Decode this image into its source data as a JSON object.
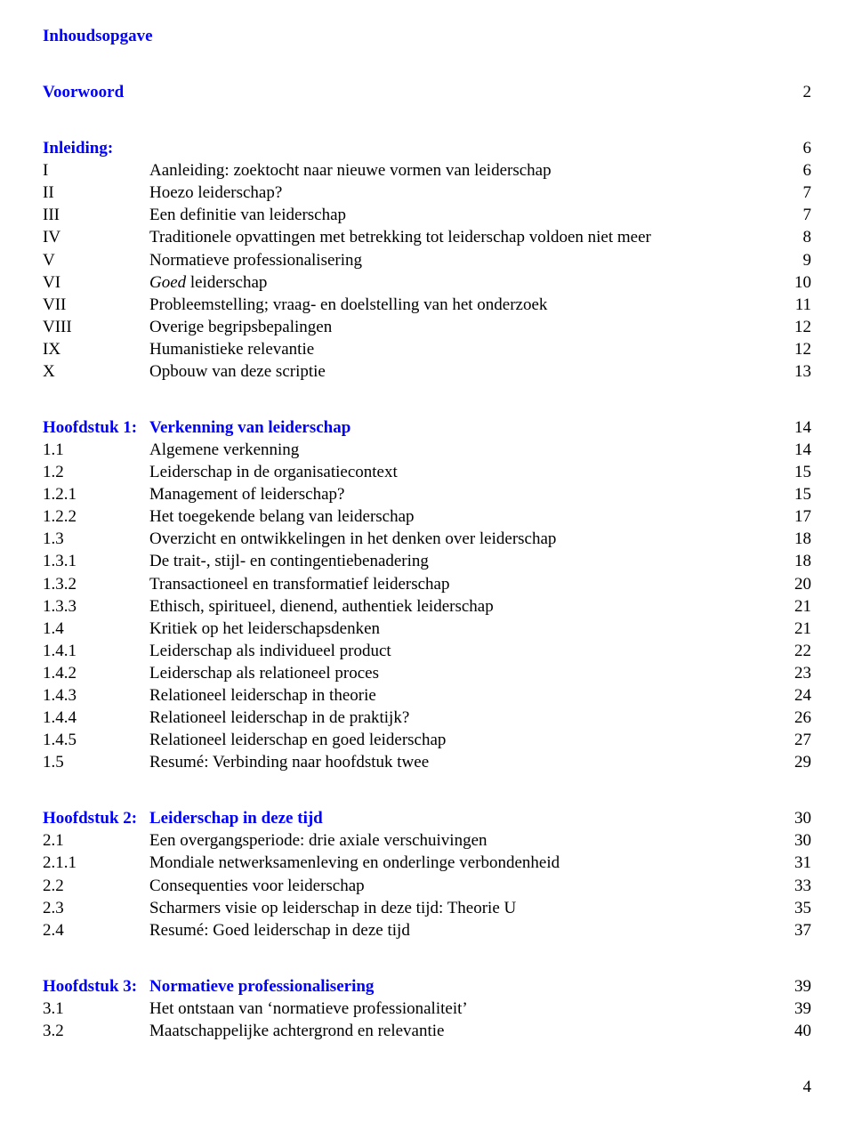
{
  "colors": {
    "link_blue": "#0000ff",
    "text_black": "#000000",
    "background": "#ffffff"
  },
  "typography": {
    "font_family": "Times New Roman",
    "base_fontsize_pt": 14
  },
  "title": "Inhoudsopgave",
  "voorwoord": {
    "label": "Voorwoord",
    "page": "2"
  },
  "inleiding": {
    "heading": {
      "label": "Inleiding:",
      "page": "6"
    },
    "items": [
      {
        "num": "I",
        "label": "Aanleiding: zoektocht naar nieuwe vormen van leiderschap",
        "page": "6"
      },
      {
        "num": "II",
        "label": "Hoezo leiderschap?",
        "page": "7"
      },
      {
        "num": "III",
        "label": "Een definitie van leiderschap",
        "page": "7"
      },
      {
        "num": "IV",
        "label": "Traditionele opvattingen met betrekking tot leiderschap voldoen niet meer",
        "page": "8"
      },
      {
        "num": "V",
        "label": "Normatieve professionalisering",
        "page": "9"
      },
      {
        "num": "VI",
        "label": "Goed leiderschap",
        "page": "10",
        "italic": true
      },
      {
        "num": "VII",
        "label": "Probleemstelling; vraag- en doelstelling van het onderzoek",
        "page": "11"
      },
      {
        "num": "VIII",
        "label": "Overige begripsbepalingen",
        "page": "12"
      },
      {
        "num": "IX",
        "label": "Humanistieke relevantie",
        "page": "12"
      },
      {
        "num": "X",
        "label": "Opbouw van deze scriptie",
        "page": "13"
      }
    ]
  },
  "h1": {
    "heading": {
      "num": "Hoofdstuk 1:",
      "label": "Verkenning van leiderschap",
      "page": "14"
    },
    "items": [
      {
        "num": "1.1",
        "label": "Algemene verkenning",
        "page": "14"
      },
      {
        "num": "1.2",
        "label": "Leiderschap in de organisatiecontext",
        "page": "15"
      },
      {
        "num": "1.2.1",
        "label": "Management of leiderschap?",
        "page": "15"
      },
      {
        "num": "1.2.2",
        "label": "Het toegekende belang van leiderschap",
        "page": "17"
      },
      {
        "num": "1.3",
        "label": "Overzicht en ontwikkelingen in het denken over leiderschap",
        "page": "18"
      },
      {
        "num": "1.3.1",
        "label": "De trait-, stijl- en contingentiebenadering",
        "page": "18"
      },
      {
        "num": "1.3.2",
        "label": "Transactioneel en transformatief leiderschap",
        "page": "20"
      },
      {
        "num": "1.3.3",
        "label": "Ethisch, spiritueel, dienend, authentiek leiderschap",
        "page": "21"
      },
      {
        "num": "1.4",
        "label": "Kritiek op het leiderschapsdenken",
        "page": "21"
      },
      {
        "num": "1.4.1",
        "label": "Leiderschap als individueel product",
        "page": "22"
      },
      {
        "num": "1.4.2",
        "label": "Leiderschap als relationeel proces",
        "page": "23"
      },
      {
        "num": "1.4.3",
        "label": "Relationeel leiderschap in theorie",
        "page": "24"
      },
      {
        "num": "1.4.4",
        "label": "Relationeel leiderschap in de praktijk?",
        "page": "26"
      },
      {
        "num": "1.4.5",
        "label": "Relationeel leiderschap en goed leiderschap",
        "page": "27"
      },
      {
        "num": "1.5",
        "label": "Resumé: Verbinding naar hoofdstuk twee",
        "page": "29"
      }
    ]
  },
  "h2": {
    "heading": {
      "num": "Hoofdstuk 2:",
      "label": "Leiderschap in deze tijd",
      "page": "30"
    },
    "items": [
      {
        "num": "2.1",
        "label": "Een overgangsperiode: drie axiale verschuivingen",
        "page": "30"
      },
      {
        "num": "2.1.1",
        "label": "Mondiale netwerksamenleving en onderlinge verbondenheid",
        "page": "31"
      },
      {
        "num": "2.2",
        "label": "Consequenties voor leiderschap",
        "page": "33"
      },
      {
        "num": "2.3",
        "label": "Scharmers visie op leiderschap in deze tijd: Theorie U",
        "page": "35"
      },
      {
        "num": "2.4",
        "label": "Resumé: Goed leiderschap in deze tijd",
        "page": "37"
      }
    ]
  },
  "h3": {
    "heading": {
      "num": "Hoofdstuk 3:",
      "label": "Normatieve professionalisering",
      "page": "39"
    },
    "items": [
      {
        "num": "3.1",
        "label": "Het ontstaan van ‘normatieve professionaliteit’",
        "page": "39"
      },
      {
        "num": "3.2",
        "label": "Maatschappelijke achtergrond en relevantie",
        "page": "40"
      }
    ]
  },
  "footer_page": "4"
}
